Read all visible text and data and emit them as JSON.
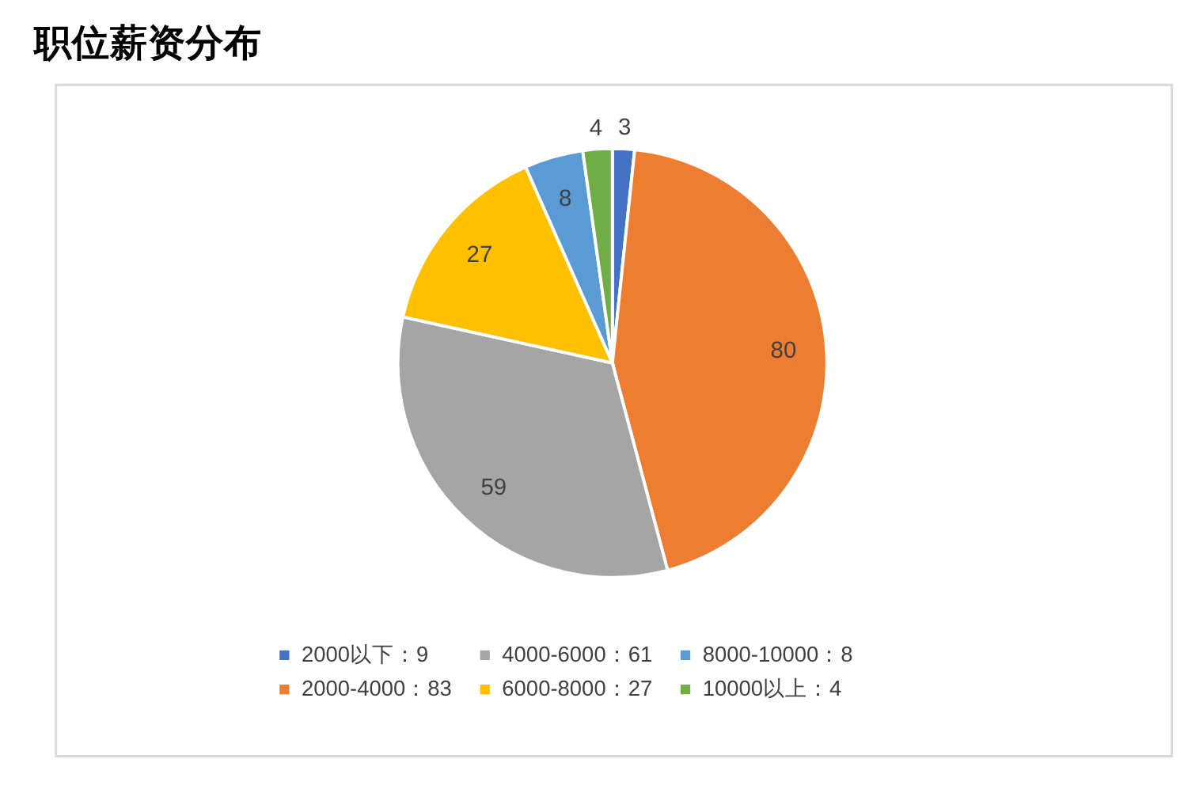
{
  "chart_data": {
    "type": "pie",
    "title": "职位薪资分布",
    "categories": [
      "2000以下：9",
      "2000-4000：83",
      "4000-6000：61",
      "6000-8000：27",
      "8000-10000：8",
      "10000以上：4"
    ],
    "values": [
      3,
      80,
      59,
      27,
      8,
      4
    ],
    "colors": [
      "#4472c4",
      "#ed7d31",
      "#a5a5a5",
      "#ffc000",
      "#5b9bd5",
      "#70ad47"
    ],
    "data_labels": true,
    "legend": "bottom"
  }
}
